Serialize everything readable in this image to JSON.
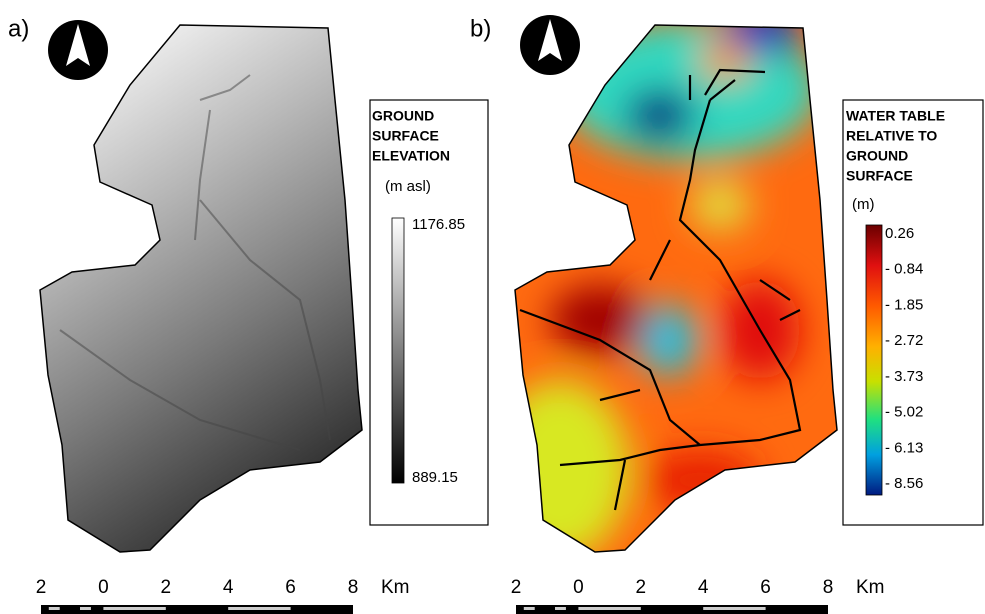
{
  "panels": [
    {
      "label": "a)",
      "legend": {
        "title": [
          "GROUND",
          "SURFACE",
          "ELEVATION"
        ],
        "unit": "(m asl)",
        "labels": [
          "1176.85",
          "889.15"
        ]
      }
    },
    {
      "label": "b)",
      "legend": {
        "title": [
          "WATER TABLE",
          "RELATIVE TO",
          "GROUND",
          "SURFACE"
        ],
        "unit": "(m)",
        "labels": [
          "0.26",
          "- 0.84",
          "- 1.85",
          "- 2.72",
          "- 3.73",
          "- 5.02",
          "- 6.13",
          "- 8.56"
        ]
      }
    }
  ],
  "scale_bar": {
    "ticks": [
      {
        "value": -2,
        "label": "2"
      },
      0,
      2,
      4,
      6,
      8
    ],
    "unit": "Km"
  }
}
